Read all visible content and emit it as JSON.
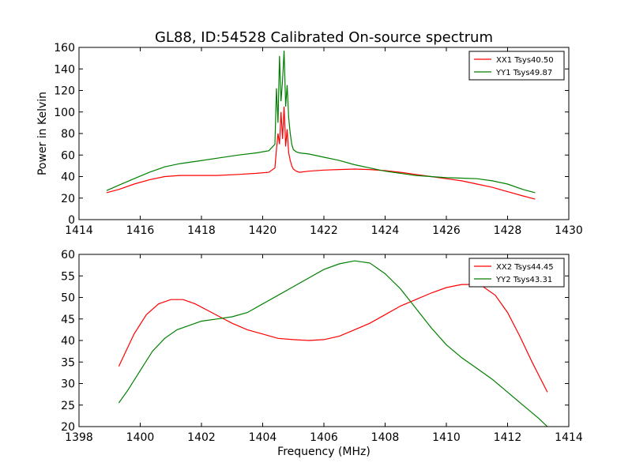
{
  "title": "GL88, ID:54528 Calibrated On-source spectrum",
  "colors": {
    "xx": "#ff0000",
    "yy": "#008000"
  },
  "chart_data": [
    {
      "type": "line",
      "id": "top",
      "title": "GL88, ID:54528 Calibrated On-source spectrum",
      "xlabel": "",
      "ylabel": "Power in Kelvin",
      "xlim": [
        1414,
        1430
      ],
      "ylim": [
        0,
        160
      ],
      "xticks": [
        1414,
        1416,
        1418,
        1420,
        1422,
        1424,
        1426,
        1428,
        1430
      ],
      "yticks": [
        0,
        20,
        40,
        60,
        80,
        100,
        120,
        140,
        160
      ],
      "legend": "top-right",
      "series": [
        {
          "name": "XX1 Tsys40.50",
          "color": "#ff0000",
          "x": [
            1414.9,
            1415.3,
            1415.8,
            1416.3,
            1416.8,
            1417.3,
            1417.8,
            1418.5,
            1419.2,
            1419.8,
            1420.2,
            1420.4,
            1420.45,
            1420.5,
            1420.55,
            1420.6,
            1420.65,
            1420.7,
            1420.75,
            1420.8,
            1420.85,
            1420.9,
            1420.95,
            1421.0,
            1421.1,
            1421.2,
            1421.5,
            1422.0,
            1422.5,
            1423.0,
            1423.5,
            1424.0,
            1424.5,
            1425.0,
            1425.5,
            1426.0,
            1426.5,
            1427.0,
            1427.5,
            1428.0,
            1428.5,
            1428.9
          ],
          "y": [
            25,
            28,
            33,
            37,
            40,
            41,
            41,
            41,
            42,
            43,
            44,
            48,
            65,
            80,
            70,
            100,
            75,
            105,
            68,
            84,
            62,
            55,
            50,
            47,
            45,
            44,
            45,
            46,
            46.5,
            47,
            46.5,
            45.5,
            44,
            42,
            40,
            38,
            36,
            33,
            30,
            26,
            22,
            19
          ]
        },
        {
          "name": "YY1 Tsys49.87",
          "color": "#008000",
          "x": [
            1414.9,
            1415.3,
            1415.8,
            1416.3,
            1416.8,
            1417.3,
            1417.8,
            1418.5,
            1419.2,
            1419.8,
            1420.2,
            1420.4,
            1420.45,
            1420.5,
            1420.55,
            1420.6,
            1420.65,
            1420.7,
            1420.75,
            1420.8,
            1420.85,
            1420.9,
            1420.95,
            1421.0,
            1421.1,
            1421.2,
            1421.5,
            1422.0,
            1422.5,
            1423.0,
            1423.5,
            1424.0,
            1424.5,
            1425.0,
            1425.5,
            1426.0,
            1426.5,
            1427.0,
            1427.5,
            1428.0,
            1428.5,
            1428.9
          ],
          "y": [
            27,
            32,
            38,
            44,
            49,
            52,
            54,
            57,
            60,
            62,
            64,
            70,
            122,
            90,
            152,
            110,
            130,
            157,
            105,
            125,
            95,
            80,
            70,
            65,
            63,
            62,
            61,
            58,
            55,
            51,
            48,
            45,
            43,
            41,
            40,
            39,
            38.5,
            38,
            36,
            33,
            28,
            25
          ]
        }
      ]
    },
    {
      "type": "line",
      "id": "bottom",
      "title": "",
      "xlabel": "Frequency (MHz)",
      "ylabel": "",
      "xlim": [
        1398,
        1414
      ],
      "ylim": [
        20,
        60
      ],
      "xticks": [
        1398,
        1400,
        1402,
        1404,
        1406,
        1408,
        1410,
        1412,
        1414
      ],
      "yticks": [
        20,
        25,
        30,
        35,
        40,
        45,
        50,
        55,
        60
      ],
      "legend": "top-right",
      "series": [
        {
          "name": "XX2 Tsys44.45",
          "color": "#ff0000",
          "x": [
            1399.3,
            1399.5,
            1399.8,
            1400.2,
            1400.6,
            1401.0,
            1401.4,
            1401.8,
            1402.2,
            1402.6,
            1403.0,
            1403.5,
            1404.0,
            1404.5,
            1405.0,
            1405.5,
            1406.0,
            1406.5,
            1407.0,
            1407.5,
            1408.0,
            1408.5,
            1409.0,
            1409.5,
            1410.0,
            1410.5,
            1410.8,
            1411.2,
            1411.6,
            1412.0,
            1412.4,
            1412.8,
            1413.3
          ],
          "y": [
            34,
            37,
            41.5,
            46,
            48.5,
            49.5,
            49.5,
            48.5,
            47,
            45.5,
            44,
            42.5,
            41.5,
            40.5,
            40.2,
            40,
            40.2,
            41,
            42.5,
            44,
            46,
            48,
            49.5,
            51,
            52.3,
            53,
            53,
            52.5,
            50.5,
            46.5,
            41,
            35,
            28
          ]
        },
        {
          "name": "YY2 Tsys43.31",
          "color": "#008000",
          "x": [
            1399.3,
            1399.6,
            1400.0,
            1400.4,
            1400.8,
            1401.2,
            1401.6,
            1402.0,
            1402.5,
            1403.0,
            1403.5,
            1404.0,
            1404.5,
            1405.0,
            1405.5,
            1406.0,
            1406.5,
            1407.0,
            1407.5,
            1408.0,
            1408.5,
            1409.0,
            1409.5,
            1410.0,
            1410.5,
            1411.0,
            1411.5,
            1412.0,
            1412.5,
            1413.0,
            1413.3
          ],
          "y": [
            25.5,
            28.5,
            33,
            37.5,
            40.5,
            42.5,
            43.5,
            44.5,
            45,
            45.5,
            46.5,
            48.5,
            50.5,
            52.5,
            54.5,
            56.5,
            57.8,
            58.5,
            58,
            55.5,
            52,
            47.5,
            43,
            39,
            36,
            33.5,
            31,
            28,
            25,
            22,
            20
          ]
        }
      ]
    }
  ]
}
